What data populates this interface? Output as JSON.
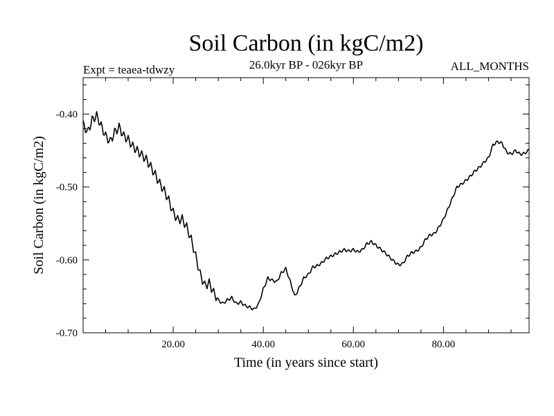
{
  "chart_data": {
    "type": "line",
    "title": "Soil Carbon (in kgC/m2)",
    "subtitle": "26.0kyr BP - 026kyr BP",
    "experiment": "Expt = teaea-tdwzy",
    "period": "ALL_MONTHS",
    "xlabel": "Time (in years since start)",
    "ylabel": "Soil Carbon (in kgC/m2)",
    "xlim": [
      0,
      99
    ],
    "ylim": [
      -0.7,
      -0.35
    ],
    "x_ticks": [
      20,
      40,
      60,
      80
    ],
    "x_tick_labels": [
      "20.00",
      "40.00",
      "60.00",
      "80.00"
    ],
    "y_ticks": [
      -0.7,
      -0.6,
      -0.5,
      -0.4
    ],
    "y_tick_labels": [
      "-0.70",
      "-0.60",
      "-0.50",
      "-0.40"
    ],
    "series": [
      {
        "name": "Soil Carbon",
        "x": [
          0,
          1,
          2,
          3,
          4,
          5,
          6,
          7,
          8,
          9,
          10,
          11,
          12,
          13,
          14,
          15,
          16,
          17,
          18,
          19,
          20,
          21,
          22,
          23,
          24,
          25,
          26,
          27,
          28,
          29,
          30,
          31,
          32,
          33,
          34,
          35,
          36,
          37,
          38,
          39,
          40,
          41,
          42,
          43,
          44,
          45,
          46,
          47,
          48,
          49,
          50,
          51,
          52,
          53,
          54,
          55,
          56,
          57,
          58,
          59,
          60,
          61,
          62,
          63,
          64,
          65,
          66,
          67,
          68,
          69,
          70,
          71,
          72,
          73,
          74,
          75,
          76,
          77,
          78,
          79,
          80,
          81,
          82,
          83,
          84,
          85,
          86,
          87,
          88,
          89,
          90,
          91,
          92,
          93,
          94,
          95,
          96,
          97,
          98,
          99
        ],
        "values": [
          -0.414,
          -0.425,
          -0.408,
          -0.402,
          -0.416,
          -0.43,
          -0.438,
          -0.425,
          -0.418,
          -0.43,
          -0.435,
          -0.444,
          -0.45,
          -0.456,
          -0.462,
          -0.472,
          -0.483,
          -0.495,
          -0.505,
          -0.518,
          -0.535,
          -0.545,
          -0.544,
          -0.555,
          -0.572,
          -0.595,
          -0.62,
          -0.635,
          -0.632,
          -0.645,
          -0.655,
          -0.66,
          -0.655,
          -0.652,
          -0.66,
          -0.658,
          -0.663,
          -0.665,
          -0.668,
          -0.66,
          -0.64,
          -0.625,
          -0.628,
          -0.63,
          -0.618,
          -0.612,
          -0.63,
          -0.65,
          -0.638,
          -0.625,
          -0.62,
          -0.61,
          -0.608,
          -0.604,
          -0.598,
          -0.595,
          -0.592,
          -0.589,
          -0.586,
          -0.588,
          -0.586,
          -0.589,
          -0.586,
          -0.578,
          -0.575,
          -0.58,
          -0.585,
          -0.59,
          -0.596,
          -0.602,
          -0.607,
          -0.605,
          -0.595,
          -0.59,
          -0.588,
          -0.583,
          -0.572,
          -0.566,
          -0.564,
          -0.555,
          -0.544,
          -0.53,
          -0.515,
          -0.5,
          -0.496,
          -0.491,
          -0.485,
          -0.478,
          -0.473,
          -0.466,
          -0.46,
          -0.442,
          -0.438,
          -0.44,
          -0.452,
          -0.455,
          -0.45,
          -0.455,
          -0.454,
          -0.449
        ]
      }
    ]
  }
}
